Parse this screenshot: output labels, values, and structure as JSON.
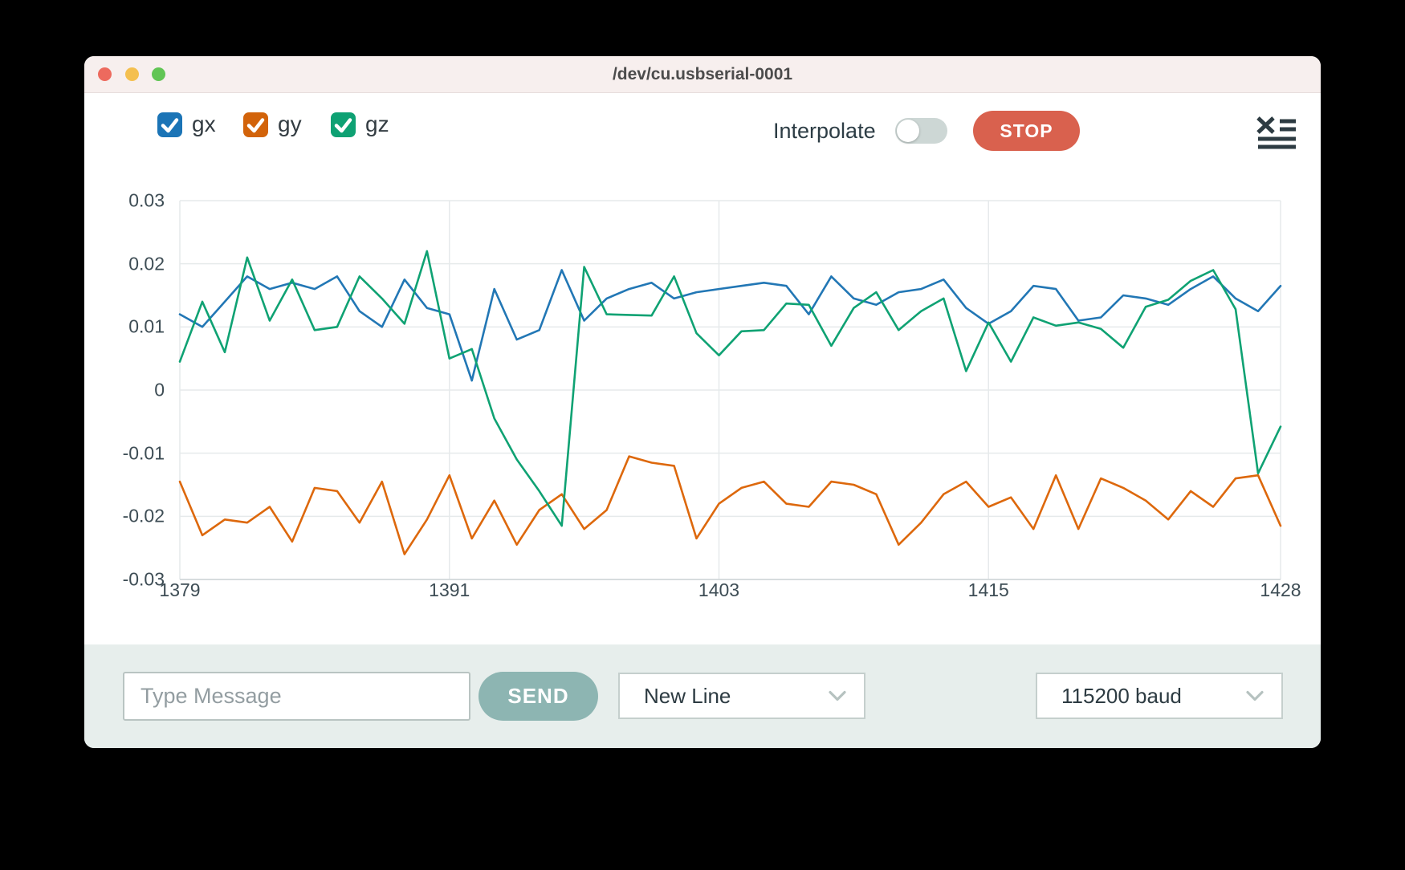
{
  "window": {
    "title": "/dev/cu.usbserial-0001",
    "traffic_lights": {
      "close": "#ed6a5e",
      "minimize": "#f4bf4f",
      "zoom": "#61c554"
    }
  },
  "toolbar": {
    "legend": [
      {
        "label": "gx",
        "checked": true,
        "color": "#1b74b6"
      },
      {
        "label": "gy",
        "checked": true,
        "color": "#d2630a"
      },
      {
        "label": "gz",
        "checked": true,
        "color": "#0ea173"
      }
    ],
    "interpolate_label": "Interpolate",
    "interpolate_on": false,
    "stop_label": "STOP",
    "stop_color": "#d9614e",
    "clear_log_icon": "list-with-x-icon"
  },
  "chart_data": {
    "type": "line",
    "x": [
      1379,
      1380,
      1381,
      1382,
      1383,
      1384,
      1385,
      1386,
      1387,
      1388,
      1389,
      1390,
      1391,
      1392,
      1393,
      1394,
      1395,
      1396,
      1397,
      1398,
      1399,
      1400,
      1401,
      1402,
      1403,
      1404,
      1405,
      1406,
      1407,
      1408,
      1409,
      1410,
      1411,
      1412,
      1413,
      1414,
      1415,
      1416,
      1417,
      1418,
      1419,
      1420,
      1421,
      1422,
      1423,
      1424,
      1425,
      1426,
      1427,
      1428
    ],
    "series": [
      {
        "name": "gx",
        "color": "#2277b5",
        "values": [
          0.012,
          0.01,
          0.014,
          0.018,
          0.016,
          0.017,
          0.016,
          0.018,
          0.0125,
          0.01,
          0.0175,
          0.013,
          0.012,
          0.0015,
          0.016,
          0.008,
          0.0095,
          0.019,
          0.011,
          0.0145,
          0.016,
          0.017,
          0.0145,
          0.0155,
          0.016,
          0.0165,
          0.017,
          0.0165,
          0.012,
          0.018,
          0.0145,
          0.0135,
          0.0155,
          0.016,
          0.0175,
          0.013,
          0.0105,
          0.0125,
          0.0165,
          0.016,
          0.011,
          0.0115,
          0.015,
          0.0145,
          0.0135,
          0.016,
          0.018,
          0.0145,
          0.0125,
          0.0165
        ]
      },
      {
        "name": "gy",
        "color": "#dd680c",
        "values": [
          -0.0145,
          -0.023,
          -0.0205,
          -0.021,
          -0.0185,
          -0.024,
          -0.0155,
          -0.016,
          -0.021,
          -0.0145,
          -0.026,
          -0.0205,
          -0.0135,
          -0.0235,
          -0.0175,
          -0.0245,
          -0.019,
          -0.0165,
          -0.022,
          -0.019,
          -0.0105,
          -0.0115,
          -0.012,
          -0.0235,
          -0.018,
          -0.0155,
          -0.0145,
          -0.018,
          -0.0185,
          -0.0145,
          -0.015,
          -0.0165,
          -0.0245,
          -0.021,
          -0.0165,
          -0.0145,
          -0.0185,
          -0.017,
          -0.022,
          -0.0135,
          -0.022,
          -0.014,
          -0.0155,
          -0.0175,
          -0.0205,
          -0.016,
          -0.0185,
          -0.014,
          -0.0135,
          -0.0215
        ]
      },
      {
        "name": "gz",
        "color": "#0fa273",
        "values": [
          0.0045,
          0.014,
          0.006,
          0.021,
          0.011,
          0.0175,
          0.0095,
          0.01,
          0.018,
          0.0145,
          0.0105,
          0.022,
          0.005,
          0.0065,
          -0.0045,
          -0.011,
          -0.016,
          -0.0215,
          0.0195,
          0.012,
          0.0119,
          0.0118,
          0.018,
          0.009,
          0.0055,
          0.0093,
          0.0095,
          0.0137,
          0.0135,
          0.007,
          0.013,
          0.0155,
          0.0095,
          0.0125,
          0.0145,
          0.003,
          0.0107,
          0.0045,
          0.0115,
          0.0102,
          0.0107,
          0.0097,
          0.0067,
          0.0132,
          0.0143,
          0.0173,
          0.019,
          0.0128,
          -0.0132,
          -0.0058
        ]
      }
    ],
    "xlim": [
      1379,
      1428
    ],
    "ylim": [
      -0.03,
      0.03
    ],
    "xticks": [
      1379,
      1391,
      1403,
      1415,
      1428
    ],
    "yticks": [
      0.03,
      0.02,
      0.01,
      0,
      -0.01,
      -0.02,
      -0.03
    ],
    "ytick_labels": [
      "0.03",
      "0.02",
      "0.01",
      "0",
      "-0.01",
      "-0.02",
      "-0.03"
    ],
    "grid": true,
    "legend_position": "top-left"
  },
  "bottom_bar": {
    "message_input": {
      "value": "",
      "placeholder": "Type Message"
    },
    "send_label": "SEND",
    "send_color": "#8db5b2",
    "line_ending_select": {
      "value": "New Line"
    },
    "baud_select": {
      "value": "115200 baud"
    }
  }
}
